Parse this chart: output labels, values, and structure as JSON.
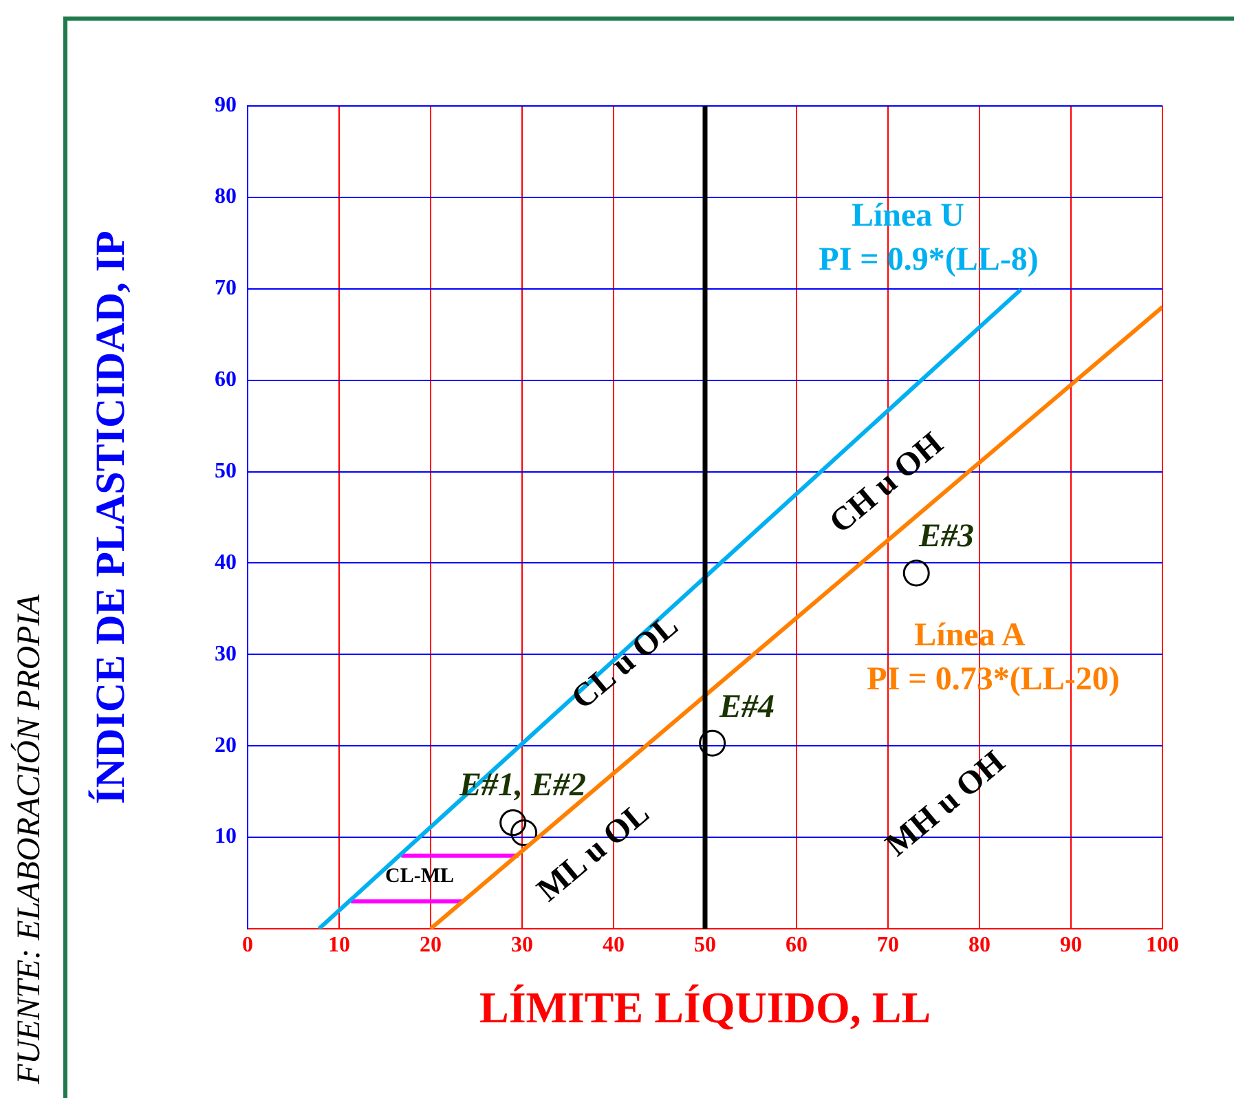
{
  "chart_data": {
    "type": "line",
    "xlabel": "LÍMITE LÍQUIDO, LL",
    "ylabel": "ÍNDICE DE PLASTICIDAD, IP",
    "series": [
      {
        "color": "#00b0f0",
        "x": [
          7.8,
          84.5
        ],
        "values": [
          0,
          69.9
        ]
      },
      {
        "color": "#ff8000",
        "x": [
          20,
          100
        ],
        "values": [
          0,
          68
        ]
      },
      {
        "color": "#ff00ff",
        "x": [
          16.8,
          29.6
        ],
        "values": [
          8,
          8
        ]
      },
      {
        "color": "#ff00ff",
        "x": [
          11.3,
          23.6
        ],
        "values": [
          3,
          3
        ]
      },
      {
        "type": "scatter",
        "marker": "circle",
        "color": "#000000",
        "x": [
          29.0,
          30.2,
          73.1,
          50.8
        ],
        "values": [
          11.6,
          10.5,
          38.9,
          20.3
        ]
      }
    ],
    "ref_lines": [
      {
        "axis": "x",
        "value": 50,
        "color": "#000000"
      }
    ],
    "xlim": [
      0,
      100
    ],
    "xticks": [
      0,
      10,
      20,
      30,
      40,
      50,
      60,
      70,
      80,
      90,
      100
    ],
    "ylim": [
      0,
      90
    ],
    "yticks": [
      {
        "value": 0,
        "label": null
      },
      10,
      20,
      30,
      40,
      50,
      60,
      70,
      80,
      90
    ],
    "grid": true,
    "legend": false,
    "annotations": [
      "Línea U",
      "PI = 0.9*(LL-8)",
      "Línea A",
      "PI = 0.73*(LL-20)",
      "E#1, E#2",
      "E#3",
      "E#4",
      "CL u OL",
      "ML u OL",
      "CH u OH",
      "MH u OH",
      "CL-ML",
      "FUENTE: ELABORACIÓN PROPIA"
    ]
  }
}
